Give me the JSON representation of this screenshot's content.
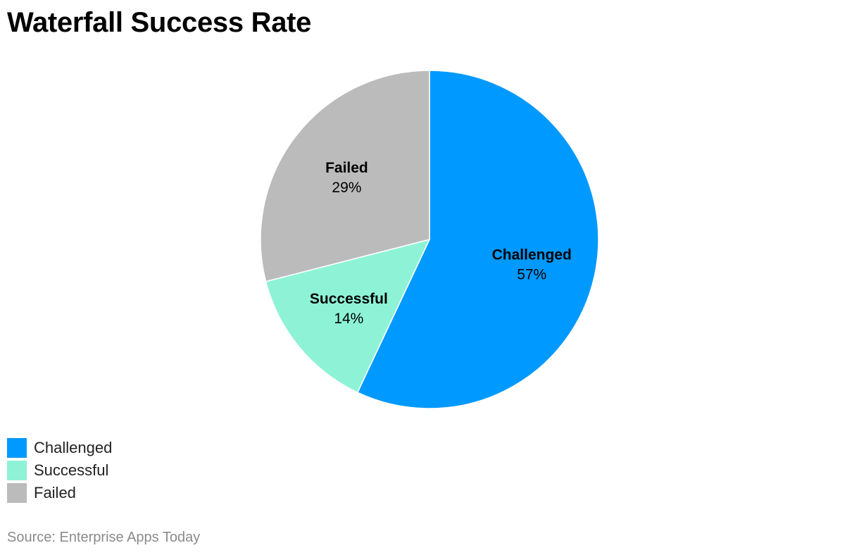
{
  "title": "Waterfall Success Rate",
  "source": "Source: Enterprise Apps Today",
  "legend": [
    {
      "label": "Challenged",
      "color": "#0099FF"
    },
    {
      "label": "Successful",
      "color": "#8EF3D6"
    },
    {
      "label": "Failed",
      "color": "#BBBBBB"
    }
  ],
  "chart_data": {
    "type": "pie",
    "title": "Waterfall Success Rate",
    "categories": [
      "Challenged",
      "Successful",
      "Failed"
    ],
    "values": [
      57,
      14,
      29
    ],
    "unit": "%",
    "colors": [
      "#0099FF",
      "#8EF3D6",
      "#BBBBBB"
    ],
    "legend_position": "bottom-left",
    "source": "Source: Enterprise Apps Today"
  }
}
